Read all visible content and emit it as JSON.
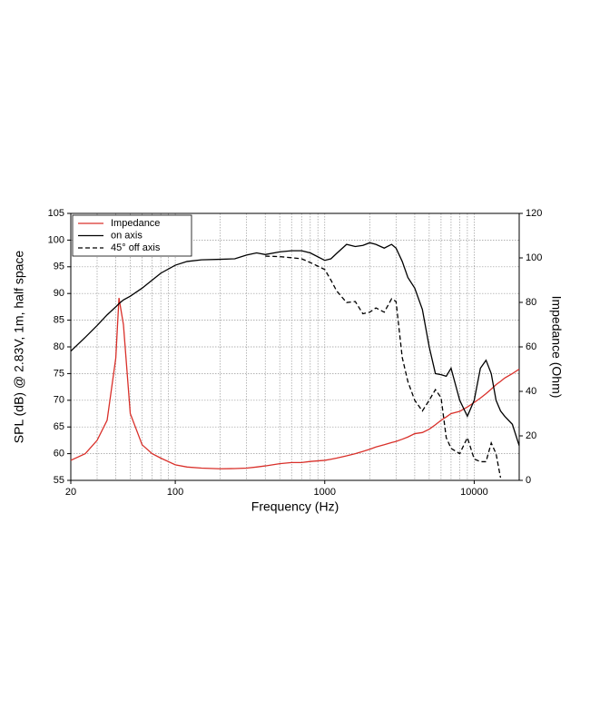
{
  "chart_data": {
    "type": "line",
    "x_label": "Frequency (Hz)",
    "y_label": "SPL (dB) @ 2.83V, 1m, half space",
    "y2_label": "Impedance (Ohm)",
    "log_x": true,
    "grid": true,
    "legend": "upper left",
    "xlim": [
      20,
      20000
    ],
    "xticks": [
      20,
      100,
      1000,
      10000
    ],
    "xminorticks": [
      30,
      40,
      50,
      60,
      70,
      80,
      90,
      200,
      300,
      400,
      500,
      600,
      700,
      800,
      900,
      2000,
      3000,
      4000,
      5000,
      6000,
      7000,
      8000,
      9000
    ],
    "ylim": [
      55,
      105
    ],
    "yticks": [
      55,
      60,
      65,
      70,
      75,
      80,
      85,
      90,
      95,
      100,
      105
    ],
    "y2lim": [
      0,
      120
    ],
    "y2ticks": [
      0,
      20,
      40,
      60,
      80,
      100,
      120
    ],
    "x": [
      20,
      25,
      30,
      35,
      40,
      42,
      45,
      50,
      60,
      70,
      80,
      100,
      120,
      150,
      200,
      250,
      300,
      350,
      400,
      500,
      600,
      700,
      800,
      1000,
      1100,
      1200,
      1400,
      1600,
      1800,
      2000,
      2200,
      2500,
      2800,
      3000,
      3300,
      3600,
      4000,
      4500,
      5000,
      5500,
      6000,
      6500,
      7000,
      8000,
      9000,
      10000,
      11000,
      12000,
      13000,
      14000,
      15000,
      16000,
      18000,
      20000
    ],
    "series": [
      {
        "name": "Impedance",
        "color": "#d9302a",
        "axis": "y2",
        "dashed": false,
        "values": [
          9,
          12,
          18,
          27,
          55,
          82,
          70,
          30,
          16,
          12,
          10,
          7,
          6,
          5.5,
          5.2,
          5.3,
          5.5,
          6,
          6.5,
          7.5,
          8,
          8,
          8.5,
          9,
          9.5,
          10,
          11,
          12,
          13,
          14,
          15,
          16,
          17,
          17.5,
          18.5,
          19.5,
          21,
          21.5,
          23,
          25,
          27,
          28.5,
          30,
          31,
          33,
          35,
          37,
          39,
          41,
          43,
          44.5,
          46,
          48,
          50
        ]
      },
      {
        "name": "on axis",
        "color": "#000000",
        "dashed": false,
        "values": [
          79.2,
          81.8,
          84,
          86,
          87.5,
          88.1,
          88.8,
          89.5,
          91,
          92.5,
          93.8,
          95.3,
          96,
          96.3,
          96.4,
          96.5,
          97.2,
          97.6,
          97.3,
          97.8,
          98,
          98,
          97.6,
          96.2,
          96.5,
          97.5,
          99.2,
          98.8,
          99,
          99.5,
          99.2,
          98.5,
          99.2,
          98.5,
          96,
          93,
          91,
          87,
          80,
          75,
          74.8,
          74.5,
          76,
          70,
          67,
          70,
          76,
          77.5,
          75,
          70,
          68,
          67,
          65.5,
          61.5
        ]
      },
      {
        "name": "45° off axis",
        "color": "#000000",
        "dashed": true,
        "values": [
          null,
          null,
          null,
          null,
          null,
          null,
          null,
          null,
          null,
          null,
          null,
          null,
          null,
          null,
          null,
          null,
          null,
          null,
          97,
          96.9,
          96.7,
          96.5,
          95.8,
          94.5,
          92.5,
          90.5,
          88.3,
          88.5,
          86.2,
          86.5,
          87.3,
          86.5,
          89,
          88.5,
          78,
          73.5,
          70,
          68,
          70,
          72,
          70.5,
          63,
          61,
          60,
          63,
          59,
          58.5,
          58.5,
          62,
          60,
          55.5,
          null,
          null,
          null
        ]
      }
    ]
  }
}
